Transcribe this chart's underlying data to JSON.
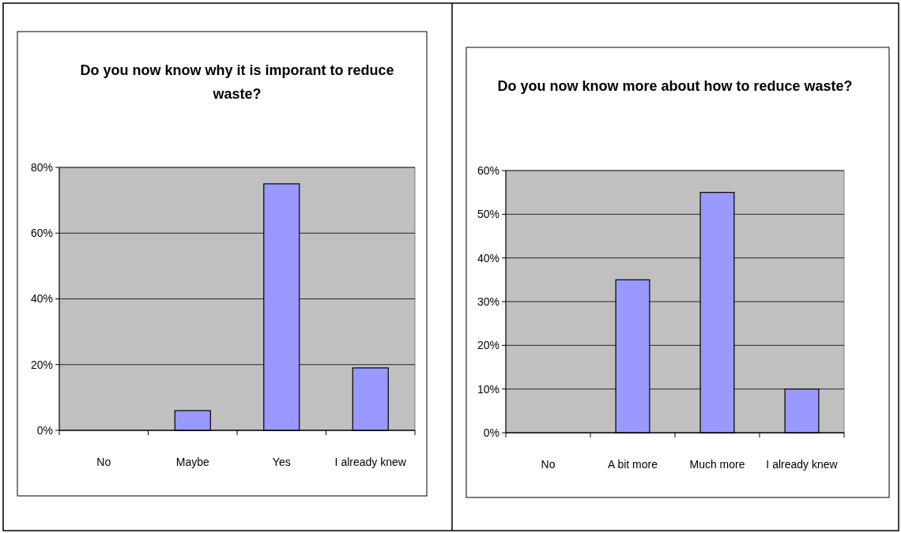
{
  "chart_data": [
    {
      "type": "bar",
      "title": "Do you now know why it is imporant to reduce waste?",
      "categories": [
        "No",
        "Maybe",
        "Yes",
        "I already knew"
      ],
      "values": [
        0,
        6,
        75,
        19
      ],
      "color": "#9999ff",
      "ylim": [
        0,
        80
      ],
      "yticks": [
        {
          "value": 0,
          "label": "0%"
        },
        {
          "value": 20,
          "label": "20%"
        },
        {
          "value": 40,
          "label": "40%"
        },
        {
          "value": 60,
          "label": "60%"
        },
        {
          "value": 80,
          "label": "80%"
        }
      ],
      "grid": "y"
    },
    {
      "type": "bar",
      "title": "Do you now know more about how to reduce waste?",
      "categories": [
        "No",
        "A bit more",
        "Much more",
        "I already knew"
      ],
      "values": [
        0,
        35,
        55,
        10
      ],
      "color": "#9999ff",
      "ylim": [
        0,
        60
      ],
      "yticks": [
        {
          "value": 0,
          "label": "0%"
        },
        {
          "value": 10,
          "label": "10%"
        },
        {
          "value": 20,
          "label": "20%"
        },
        {
          "value": 30,
          "label": "30%"
        },
        {
          "value": 40,
          "label": "40%"
        },
        {
          "value": 50,
          "label": "50%"
        },
        {
          "value": 60,
          "label": "60%"
        }
      ],
      "grid": "y"
    }
  ]
}
